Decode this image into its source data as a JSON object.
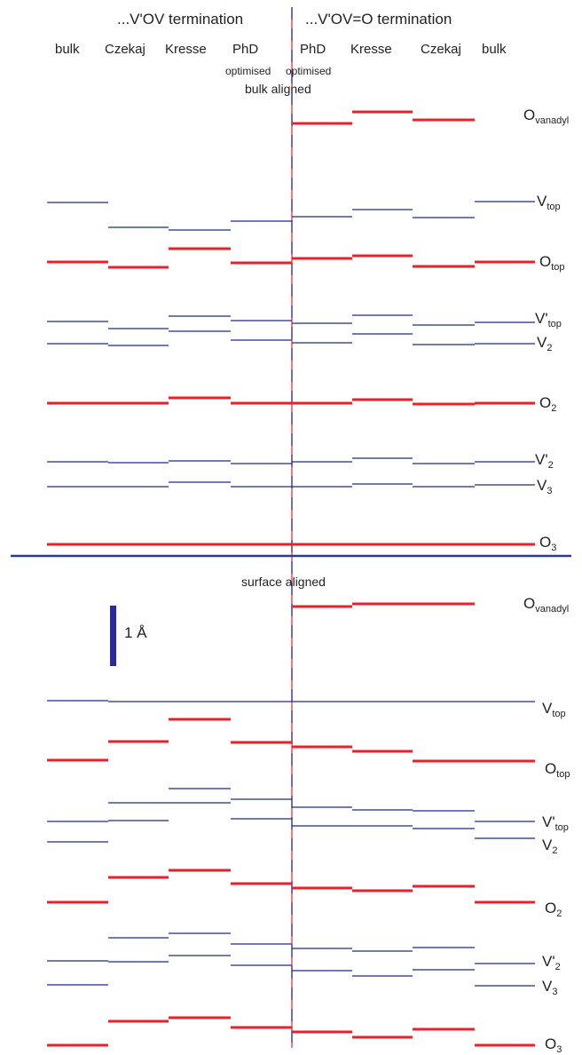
{
  "headers": {
    "left": "...V'OV termination",
    "right": "...V'OV=O termination"
  },
  "columns": [
    "bulk",
    "Czekaj",
    "Kresse",
    "PhD",
    "PhD",
    "Kresse",
    "Czekaj",
    "bulk"
  ],
  "subheaders": {
    "optimised_left": "optimised",
    "optimised_right": "optimised",
    "bulk_aligned": "bulk aligned"
  },
  "surface_aligned": "surface aligned",
  "scale_bar": {
    "label": "1 Å",
    "value_angstrom": 1
  },
  "levels": {
    "vanadyl": {
      "main": "O",
      "sub": "vanadyl"
    },
    "vtop": {
      "main": "V",
      "sub": "top"
    },
    "otop": {
      "main": "O",
      "sub": "top"
    },
    "vptop": {
      "main": "V'",
      "sub": "top"
    },
    "v2": {
      "main": "V",
      "sub": "2"
    },
    "o2": {
      "main": "O",
      "sub": "2"
    },
    "vp2": {
      "main": "V'",
      "sub": "2"
    },
    "v3": {
      "main": "V",
      "sub": "3"
    },
    "o3": {
      "main": "O",
      "sub": "3"
    }
  },
  "colors": {
    "oxygen": "#e8222a",
    "vanadium": "#1a2a8c",
    "divider": "#2a3a9a",
    "dash_red": "#e8222a",
    "dash_blue": "#1a2a8c"
  }
}
